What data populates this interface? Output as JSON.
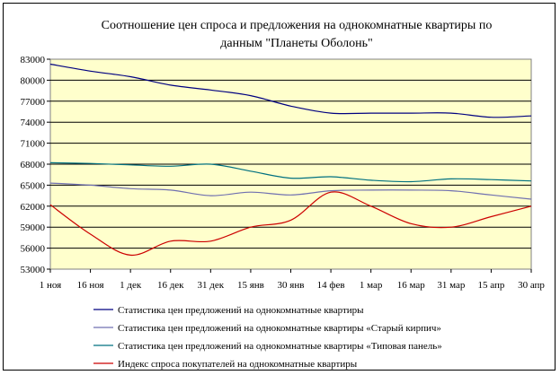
{
  "chart_data": {
    "type": "line",
    "title_lines": [
      "Соотношение цен спроса и предложения на однокомнатные квартиры по",
      "данным \"Планеты Оболонь\""
    ],
    "categories": [
      "1 ноя",
      "16 ноя",
      "1 дек",
      "16 дек",
      "31 дек",
      "15 янв",
      "30 янв",
      "14 фев",
      "1 мар",
      "16 мар",
      "31 мар",
      "15 апр",
      "30 апр"
    ],
    "y_ticks": [
      "83000",
      "80000",
      "77000",
      "74000",
      "71000",
      "68000",
      "65000",
      "62000",
      "59000",
      "56000",
      "53000"
    ],
    "ylim": [
      53000,
      83000
    ],
    "grid": true,
    "plot_background": "#ffffcc",
    "legend_position": "bottom",
    "series": [
      {
        "name": "Статистика цен предложений на однокомнатные квартиры",
        "color": "#000080",
        "values": [
          82300,
          81300,
          80500,
          79300,
          78600,
          77800,
          76300,
          75300,
          75300,
          75300,
          75300,
          74700,
          74900
        ]
      },
      {
        "name": "Статистика цен предложений на однокомнатные квартиры «Старый кирпич»",
        "color": "#7070b0",
        "values": [
          65300,
          65000,
          64500,
          64300,
          63500,
          64000,
          63600,
          64200,
          64300,
          64300,
          64200,
          63600,
          63000
        ]
      },
      {
        "name": "Статистика цен предложений на однокомнатные квартиры «Типовая панель»",
        "color": "#007080",
        "values": [
          68200,
          68100,
          67900,
          67700,
          68000,
          67000,
          66000,
          66200,
          65700,
          65500,
          65900,
          65800,
          65600
        ]
      },
      {
        "name": "Индекс спроса покупателей на однокомнатные квартиры",
        "color": "#cc0000",
        "values": [
          62200,
          58000,
          55000,
          57000,
          57000,
          59000,
          60000,
          64000,
          62000,
          59500,
          59000,
          60500,
          62000
        ]
      }
    ]
  }
}
